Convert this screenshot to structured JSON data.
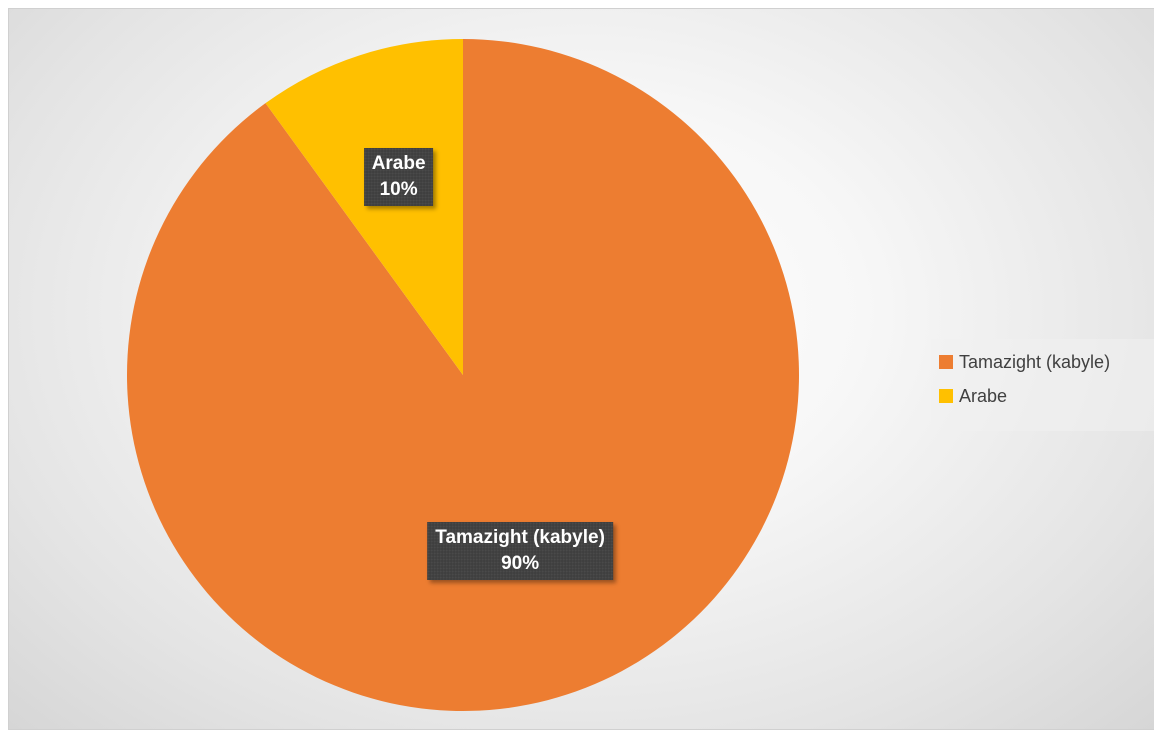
{
  "chart_data": {
    "type": "pie",
    "title": "",
    "categories": [
      "Tamazight (kabyle)",
      "Arabe"
    ],
    "values": [
      90,
      10
    ],
    "value_labels": [
      "90%",
      "10%"
    ],
    "colors": [
      "#ED7D31",
      "#FFC000"
    ],
    "start_angle_deg": 0,
    "direction": "counterclockwise-from-top",
    "legend_position": "right",
    "data_labels": true
  },
  "legend": {
    "items": [
      {
        "label": "Tamazight (kabyle)",
        "color": "#ED7D31"
      },
      {
        "label": "Arabe",
        "color": "#FFC000"
      }
    ]
  }
}
